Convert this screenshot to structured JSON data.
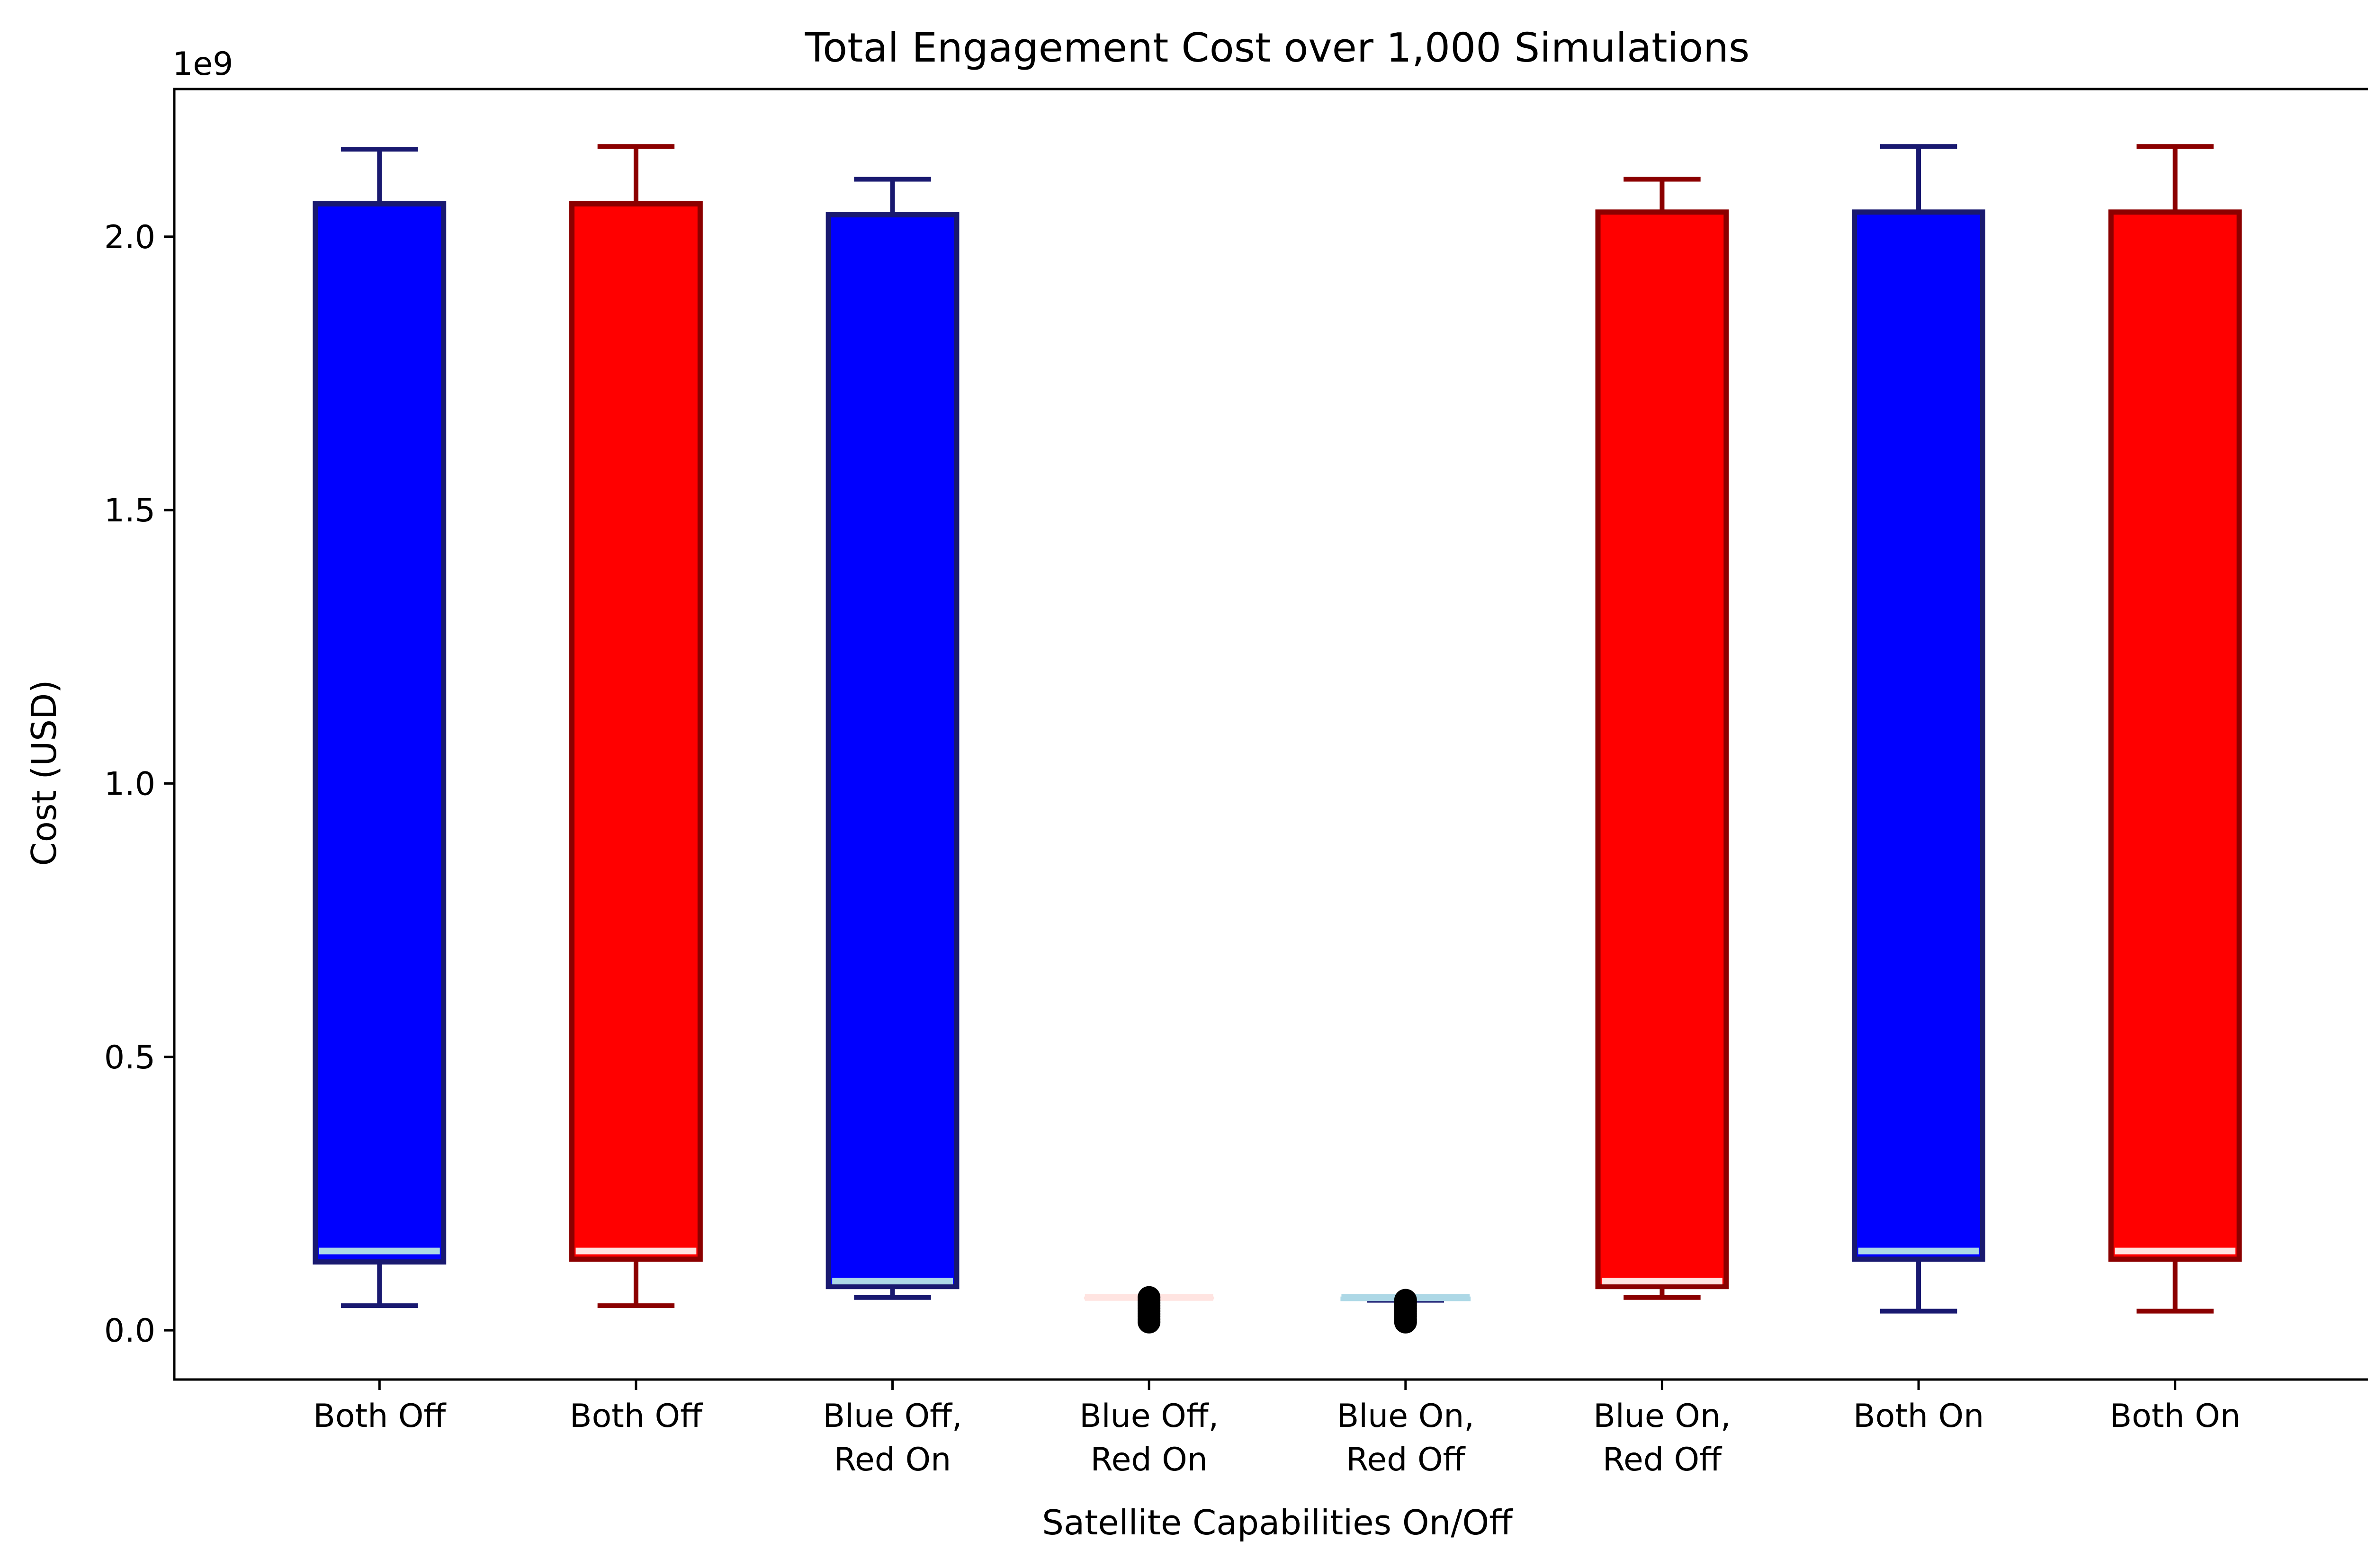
{
  "chart_data": {
    "type": "box",
    "title": "Total Engagement Cost over 1,000 Simulations",
    "xlabel": "Satellite Capabilities On/Off",
    "ylabel": "Cost (USD)",
    "y_offset_label": "1e9",
    "y_unit_multiplier": 1000000000,
    "ylim": [
      -0.09,
      2.27
    ],
    "yticks": [
      0.0,
      0.5,
      1.0,
      1.5,
      2.0
    ],
    "ytick_labels": [
      "0.0",
      "0.5",
      "1.0",
      "1.5",
      "2.0"
    ],
    "grid": false,
    "categories": [
      [
        "Both Off"
      ],
      [
        "Both Off"
      ],
      [
        "Blue Off,",
        "Red On"
      ],
      [
        "Blue Off,",
        "Red On"
      ],
      [
        "Blue On,",
        "Red Off"
      ],
      [
        "Blue On,",
        "Red Off"
      ],
      [
        "Both On"
      ],
      [
        "Both On"
      ]
    ],
    "boxes": [
      {
        "team": "blue",
        "whislo": 0.045,
        "q1": 0.125,
        "median": 0.145,
        "q3": 2.06,
        "whishi": 2.16,
        "fliers": []
      },
      {
        "team": "red",
        "whislo": 0.045,
        "q1": 0.13,
        "median": 0.145,
        "q3": 2.06,
        "whishi": 2.165,
        "fliers": []
      },
      {
        "team": "blue",
        "whislo": 0.06,
        "q1": 0.08,
        "median": 0.09,
        "q3": 2.04,
        "whishi": 2.105,
        "fliers": []
      },
      {
        "team": "red",
        "whislo": 0.06,
        "q1": 0.06,
        "median": 0.06,
        "q3": 0.06,
        "whishi": 0.06,
        "fliers": [
          0.015,
          0.02,
          0.025,
          0.03,
          0.035,
          0.04,
          0.045,
          0.05,
          0.055,
          0.06
        ]
      },
      {
        "team": "blue",
        "whislo": 0.055,
        "q1": 0.055,
        "median": 0.06,
        "q3": 0.06,
        "whishi": 0.06,
        "fliers": [
          0.015,
          0.02,
          0.025,
          0.03,
          0.035,
          0.04,
          0.045,
          0.05,
          0.055
        ]
      },
      {
        "team": "red",
        "whislo": 0.06,
        "q1": 0.08,
        "median": 0.09,
        "q3": 2.045,
        "whishi": 2.105,
        "fliers": []
      },
      {
        "team": "blue",
        "whislo": 0.035,
        "q1": 0.13,
        "median": 0.145,
        "q3": 2.045,
        "whishi": 2.165,
        "fliers": []
      },
      {
        "team": "red",
        "whislo": 0.035,
        "q1": 0.13,
        "median": 0.145,
        "q3": 2.045,
        "whishi": 2.165,
        "fliers": []
      }
    ],
    "colors": {
      "blue": {
        "fill": "#0000ff",
        "edge": "#191970",
        "whisker": "#191970",
        "median": "#add8e6"
      },
      "red": {
        "fill": "#ff0000",
        "edge": "#8b0000",
        "whisker": "#8b0000",
        "median": "#ffe4e1"
      },
      "flier": "#000000",
      "axes": "#000000"
    }
  }
}
